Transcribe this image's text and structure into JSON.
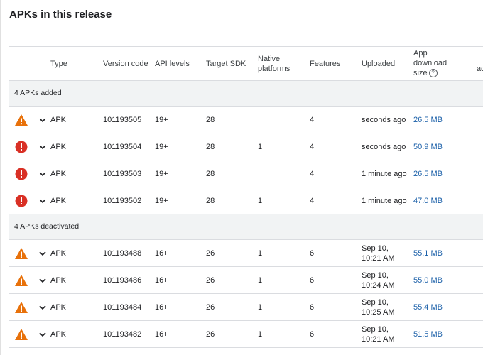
{
  "title": "APKs in this release",
  "headers": {
    "type": "Type",
    "version_code": "Version code",
    "api_levels": "API levels",
    "target_sdk": "Target SDK",
    "native_line1": "Native",
    "native_line2": "platforms",
    "features": "Features",
    "uploaded": "Uploaded",
    "size_line1": "App",
    "size_line2": "download",
    "size_line3": "size",
    "extra_line1": "In",
    "extra_line2": "active"
  },
  "colors": {
    "warning": "#e8710a",
    "error": "#d93025",
    "link": "#1a5fa8"
  },
  "sections": [
    {
      "label": "4 APKs added",
      "rows": [
        {
          "status": "warning-icon",
          "type": "APK",
          "version": "101193505",
          "api": "19+",
          "target": "28",
          "native": "",
          "features": "4",
          "uploaded1": "seconds ago",
          "uploaded2": "",
          "size": "26.5 MB"
        },
        {
          "status": "error-icon",
          "type": "APK",
          "version": "101193504",
          "api": "19+",
          "target": "28",
          "native": "1",
          "features": "4",
          "uploaded1": "seconds ago",
          "uploaded2": "",
          "size": "50.9 MB"
        },
        {
          "status": "error-icon",
          "type": "APK",
          "version": "101193503",
          "api": "19+",
          "target": "28",
          "native": "",
          "features": "4",
          "uploaded1": "1 minute ago",
          "uploaded2": "",
          "size": "26.5 MB"
        },
        {
          "status": "error-icon",
          "type": "APK",
          "version": "101193502",
          "api": "19+",
          "target": "28",
          "native": "1",
          "features": "4",
          "uploaded1": "1 minute ago",
          "uploaded2": "",
          "size": "47.0 MB"
        }
      ]
    },
    {
      "label": "4 APKs deactivated",
      "rows": [
        {
          "status": "warning-icon",
          "type": "APK",
          "version": "101193488",
          "api": "16+",
          "target": "26",
          "native": "1",
          "features": "6",
          "uploaded1": "Sep 10,",
          "uploaded2": "10:21 AM",
          "size": "55.1 MB"
        },
        {
          "status": "warning-icon",
          "type": "APK",
          "version": "101193486",
          "api": "16+",
          "target": "26",
          "native": "1",
          "features": "6",
          "uploaded1": "Sep 10,",
          "uploaded2": "10:24 AM",
          "size": "55.0 MB"
        },
        {
          "status": "warning-icon",
          "type": "APK",
          "version": "101193484",
          "api": "16+",
          "target": "26",
          "native": "1",
          "features": "6",
          "uploaded1": "Sep 10,",
          "uploaded2": "10:25 AM",
          "size": "55.4 MB"
        },
        {
          "status": "warning-icon",
          "type": "APK",
          "version": "101193482",
          "api": "16+",
          "target": "26",
          "native": "1",
          "features": "6",
          "uploaded1": "Sep 10,",
          "uploaded2": "10:21 AM",
          "size": "51.5 MB"
        }
      ]
    }
  ]
}
